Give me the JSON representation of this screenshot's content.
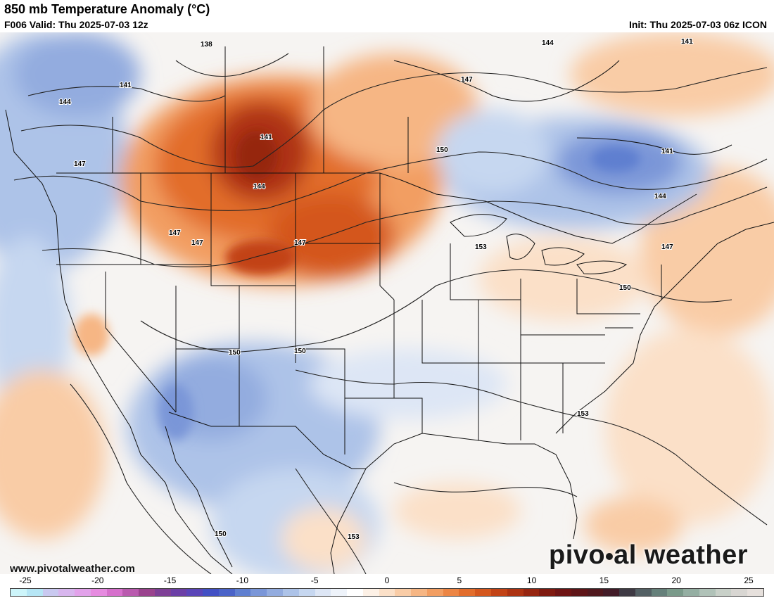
{
  "header": {
    "title": "850 mb Temperature Anomaly (°C)",
    "valid": "F006 Valid: Thu 2025-07-03 12z",
    "init": "Init: Thu 2025-07-03 06z ICON"
  },
  "footer": {
    "site": "www.pivotalweather.com",
    "brand_left": "pivo",
    "brand_right": "al weather"
  },
  "colorbar": {
    "ticks": [
      "-25",
      "-20",
      "-15",
      "-10",
      "-5",
      "0",
      "5",
      "10",
      "15",
      "20",
      "25"
    ],
    "colors": [
      "#cdf5fa",
      "#b6e6f5",
      "#c9c9f0",
      "#d8b6ee",
      "#e2a2ea",
      "#e68be0",
      "#d670cc",
      "#b95aae",
      "#9a438e",
      "#7e4096",
      "#6b3fa6",
      "#5a45b8",
      "#4250c4",
      "#4a63c8",
      "#5f7fd0",
      "#7a96d8",
      "#93acdf",
      "#adc3e8",
      "#c6d7f0",
      "#dde6f5",
      "#eef3fa",
      "#ffffff",
      "#fdf1e6",
      "#fbe0c8",
      "#f9cca6",
      "#f6b684",
      "#f29e62",
      "#ec8544",
      "#e26d2c",
      "#d4571e",
      "#c24316",
      "#ad3312",
      "#962510",
      "#7f1a10",
      "#6e1414",
      "#5e1518",
      "#50181e",
      "#421c28",
      "#3e3a44",
      "#536064",
      "#65807a",
      "#7a9a8a",
      "#94aea2",
      "#b0c2b8",
      "#c8d0c8",
      "#d8d6d2",
      "#e6e0dc"
    ],
    "data_range": [
      -25,
      25
    ]
  },
  "contour_labels": [
    "138",
    "141",
    "144",
    "147",
    "150",
    "153"
  ]
}
